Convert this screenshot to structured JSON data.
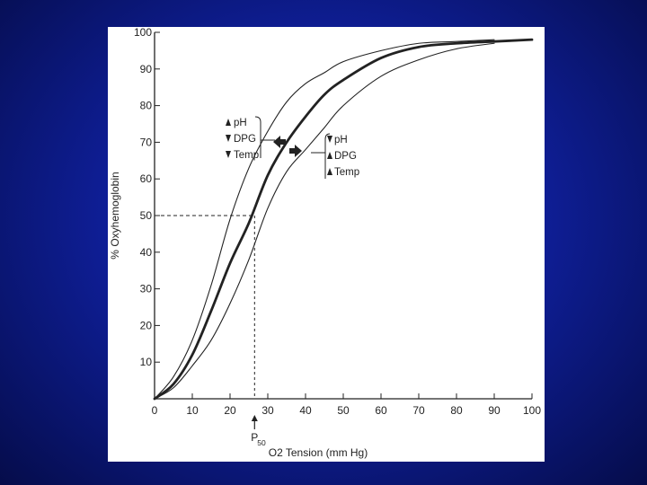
{
  "colors": {
    "background": "#0f1f9a",
    "figure_bg": "#ffffff",
    "ink": "#222222"
  },
  "chart_data": {
    "type": "line",
    "xlabel": "O2 Tension (mm Hg)",
    "ylabel": "% Oxyhemoglobin",
    "xlim": [
      0,
      100
    ],
    "ylim": [
      0,
      100
    ],
    "xticks": [
      0,
      10,
      20,
      30,
      40,
      50,
      60,
      70,
      80,
      90,
      100
    ],
    "yticks": [
      10,
      20,
      30,
      40,
      50,
      60,
      70,
      80,
      90,
      100
    ],
    "grid": false,
    "series": [
      {
        "style": "thin",
        "x": [
          0,
          5,
          10,
          15,
          20,
          25,
          30,
          35,
          40,
          45,
          50,
          60,
          70,
          80,
          90
        ],
        "y": [
          0,
          6,
          16,
          31,
          49,
          63,
          73,
          81,
          86,
          89,
          92,
          95,
          97,
          97.5,
          98
        ]
      },
      {
        "style": "thick",
        "x": [
          0,
          5,
          10,
          15,
          20,
          25,
          30,
          35,
          40,
          45,
          50,
          60,
          70,
          80,
          90,
          100
        ],
        "y": [
          0,
          4,
          12,
          24,
          37,
          48,
          61,
          70,
          77,
          83,
          87,
          93,
          96,
          97,
          97.5,
          98
        ]
      },
      {
        "style": "thin",
        "x": [
          0,
          5,
          10,
          15,
          20,
          25,
          30,
          35,
          40,
          45,
          50,
          60,
          70,
          80,
          90
        ],
        "y": [
          0,
          3,
          9,
          16,
          26,
          38,
          52,
          62,
          68,
          74,
          80,
          88,
          92.5,
          95.5,
          97
        ]
      }
    ],
    "p50": {
      "x": 26.5,
      "y": 50,
      "label": "P",
      "label_sub": "50"
    },
    "annotations": {
      "left_shift": [
        "pH",
        "DPG",
        "Temp"
      ],
      "right_shift": [
        "pH",
        "DPG",
        "Temp"
      ]
    }
  }
}
